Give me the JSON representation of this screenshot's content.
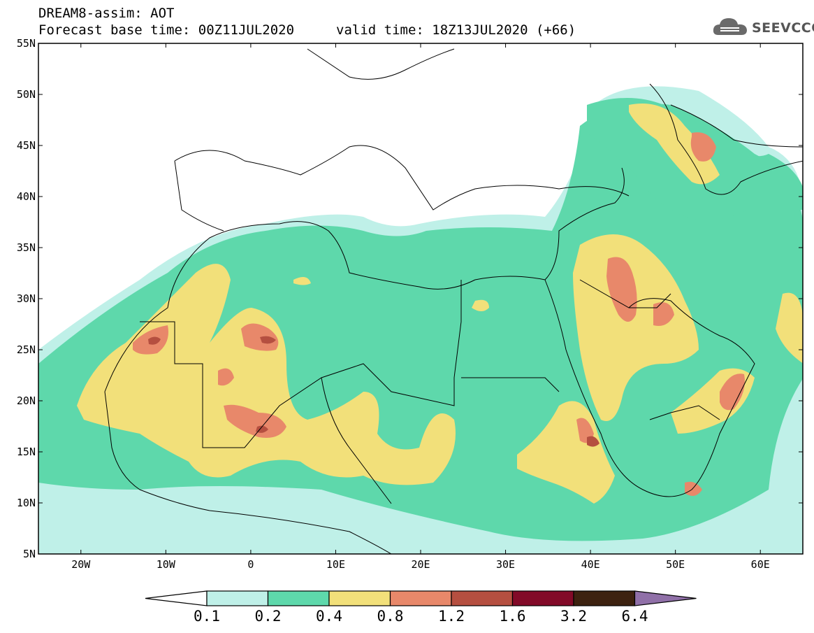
{
  "header": {
    "title": "DREAM8-assim: AOT",
    "base_time": "Forecast base time: 00Z11JUL2020",
    "valid_time": "valid time: 18Z13JUL2020 (+66)"
  },
  "logo": {
    "icon": "cloud-icon",
    "text": "SEEVCCC"
  },
  "axes": {
    "lat_labels": [
      "55N",
      "50N",
      "45N",
      "40N",
      "35N",
      "30N",
      "25N",
      "20N",
      "15N",
      "10N",
      "5N"
    ],
    "lon_labels": [
      "20W",
      "10W",
      "0",
      "10E",
      "20E",
      "30E",
      "40E",
      "50E",
      "60E"
    ]
  },
  "colorbar": {
    "ticks": [
      "0.1",
      "0.2",
      "0.4",
      "0.8",
      "1.2",
      "1.6",
      "3.2",
      "6.4"
    ],
    "colors": [
      "#bff0e8",
      "#5ed8ab",
      "#f2e07a",
      "#e8886a",
      "#b54f40",
      "#820a28",
      "#3d2210",
      "#9070a8"
    ]
  },
  "colors": {
    "c01": "#bff0e8",
    "c02": "#5ed8ab",
    "c04": "#f2e07a",
    "c08": "#e8886a",
    "c12": "#b54f40",
    "c16": "#820a28"
  }
}
